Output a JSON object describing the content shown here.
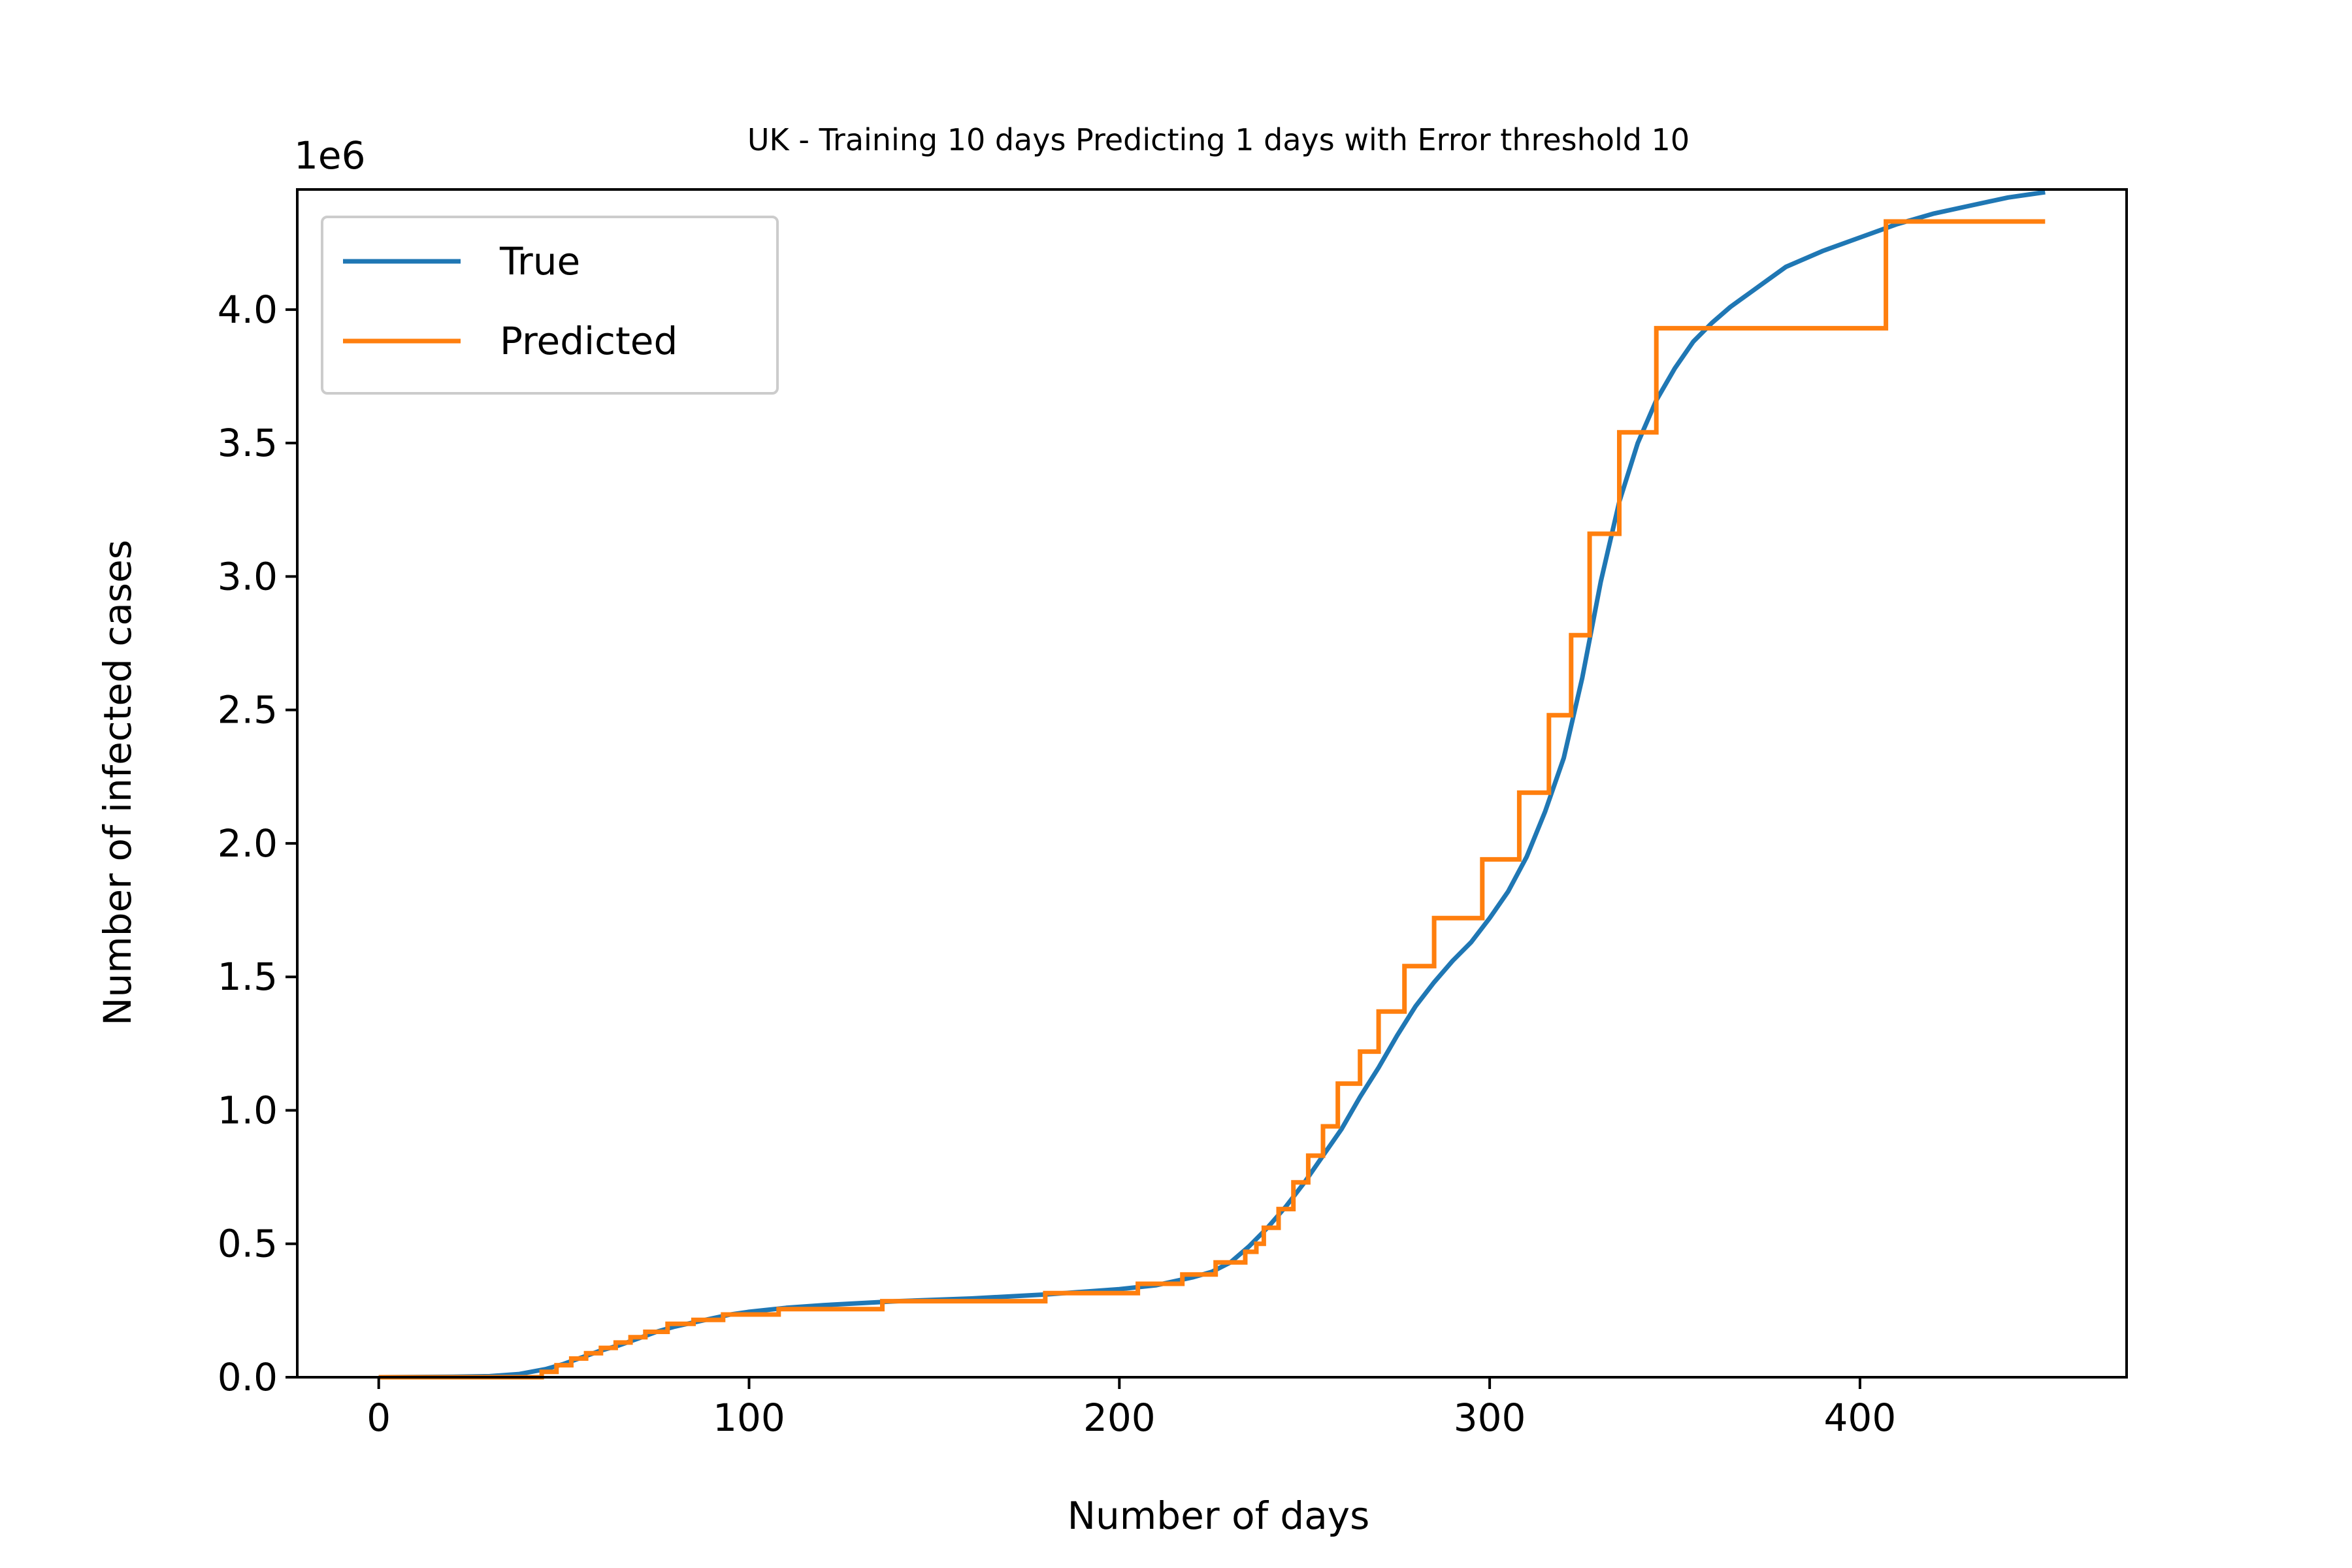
{
  "chart_data": {
    "type": "line",
    "title": "UK - Training 10 days Predicting 1 days with Error threshold 10",
    "xlabel": "Number of days",
    "ylabel": "Number of infected cases",
    "y_offset_label": "1e6",
    "xlim": [
      -22,
      472
    ],
    "ylim": [
      0,
      4.45
    ],
    "x_ticks": [
      0,
      100,
      200,
      300,
      400
    ],
    "x_tick_labels": [
      "0",
      "100",
      "200",
      "300",
      "400"
    ],
    "y_ticks": [
      0,
      0.5,
      1.0,
      1.5,
      2.0,
      2.5,
      3.0,
      3.5,
      4.0
    ],
    "y_tick_labels": [
      "0.0",
      "0.5",
      "1.0",
      "1.5",
      "2.0",
      "2.5",
      "3.0",
      "3.5",
      "4.0"
    ],
    "grid": false,
    "legend_position": "upper-left",
    "series": [
      {
        "name": "True",
        "color": "#1f77b4",
        "step": false,
        "points": [
          [
            0,
            0
          ],
          [
            20,
            0.002
          ],
          [
            30,
            0.004
          ],
          [
            38,
            0.012
          ],
          [
            45,
            0.03
          ],
          [
            50,
            0.05
          ],
          [
            55,
            0.075
          ],
          [
            60,
            0.1
          ],
          [
            65,
            0.12
          ],
          [
            70,
            0.145
          ],
          [
            75,
            0.17
          ],
          [
            80,
            0.19
          ],
          [
            85,
            0.205
          ],
          [
            90,
            0.22
          ],
          [
            95,
            0.235
          ],
          [
            100,
            0.245
          ],
          [
            110,
            0.26
          ],
          [
            120,
            0.27
          ],
          [
            140,
            0.285
          ],
          [
            160,
            0.295
          ],
          [
            180,
            0.31
          ],
          [
            200,
            0.33
          ],
          [
            210,
            0.345
          ],
          [
            220,
            0.375
          ],
          [
            225,
            0.395
          ],
          [
            230,
            0.43
          ],
          [
            235,
            0.49
          ],
          [
            240,
            0.56
          ],
          [
            245,
            0.64
          ],
          [
            250,
            0.73
          ],
          [
            255,
            0.83
          ],
          [
            260,
            0.93
          ],
          [
            265,
            1.05
          ],
          [
            270,
            1.16
          ],
          [
            275,
            1.28
          ],
          [
            280,
            1.39
          ],
          [
            285,
            1.48
          ],
          [
            290,
            1.56
          ],
          [
            295,
            1.63
          ],
          [
            300,
            1.72
          ],
          [
            305,
            1.82
          ],
          [
            310,
            1.95
          ],
          [
            315,
            2.12
          ],
          [
            320,
            2.32
          ],
          [
            325,
            2.62
          ],
          [
            330,
            2.98
          ],
          [
            335,
            3.28
          ],
          [
            340,
            3.5
          ],
          [
            345,
            3.66
          ],
          [
            350,
            3.78
          ],
          [
            355,
            3.88
          ],
          [
            360,
            3.95
          ],
          [
            365,
            4.01
          ],
          [
            370,
            4.06
          ],
          [
            375,
            4.11
          ],
          [
            380,
            4.16
          ],
          [
            390,
            4.22
          ],
          [
            400,
            4.27
          ],
          [
            410,
            4.32
          ],
          [
            420,
            4.36
          ],
          [
            430,
            4.39
          ],
          [
            440,
            4.42
          ],
          [
            450,
            4.44
          ]
        ]
      },
      {
        "name": "Predicted",
        "color": "#ff7f0e",
        "step": true,
        "points": [
          [
            0,
            0
          ],
          [
            44,
            0
          ],
          [
            44,
            0.02
          ],
          [
            48,
            0.02
          ],
          [
            48,
            0.045
          ],
          [
            52,
            0.045
          ],
          [
            52,
            0.07
          ],
          [
            56,
            0.07
          ],
          [
            56,
            0.09
          ],
          [
            60,
            0.09
          ],
          [
            60,
            0.11
          ],
          [
            64,
            0.11
          ],
          [
            64,
            0.13
          ],
          [
            68,
            0.13
          ],
          [
            68,
            0.15
          ],
          [
            72,
            0.15
          ],
          [
            72,
            0.17
          ],
          [
            78,
            0.17
          ],
          [
            78,
            0.2
          ],
          [
            85,
            0.2
          ],
          [
            85,
            0.215
          ],
          [
            93,
            0.215
          ],
          [
            93,
            0.235
          ],
          [
            108,
            0.235
          ],
          [
            108,
            0.255
          ],
          [
            136,
            0.255
          ],
          [
            136,
            0.285
          ],
          [
            180,
            0.285
          ],
          [
            180,
            0.315
          ],
          [
            205,
            0.315
          ],
          [
            205,
            0.35
          ],
          [
            217,
            0.35
          ],
          [
            217,
            0.385
          ],
          [
            226,
            0.385
          ],
          [
            226,
            0.43
          ],
          [
            234,
            0.43
          ],
          [
            234,
            0.47
          ],
          [
            237,
            0.47
          ],
          [
            237,
            0.5
          ],
          [
            239,
            0.5
          ],
          [
            239,
            0.56
          ],
          [
            243,
            0.56
          ],
          [
            243,
            0.63
          ],
          [
            247,
            0.63
          ],
          [
            247,
            0.73
          ],
          [
            251,
            0.73
          ],
          [
            251,
            0.83
          ],
          [
            255,
            0.83
          ],
          [
            255,
            0.94
          ],
          [
            259,
            0.94
          ],
          [
            259,
            1.1
          ],
          [
            265,
            1.1
          ],
          [
            265,
            1.22
          ],
          [
            270,
            1.22
          ],
          [
            270,
            1.37
          ],
          [
            277,
            1.37
          ],
          [
            277,
            1.54
          ],
          [
            285,
            1.54
          ],
          [
            285,
            1.72
          ],
          [
            298,
            1.72
          ],
          [
            298,
            1.94
          ],
          [
            308,
            1.94
          ],
          [
            308,
            2.19
          ],
          [
            316,
            2.19
          ],
          [
            316,
            2.48
          ],
          [
            322,
            2.48
          ],
          [
            322,
            2.78
          ],
          [
            327,
            2.78
          ],
          [
            327,
            3.16
          ],
          [
            335,
            3.16
          ],
          [
            335,
            3.54
          ],
          [
            345,
            3.54
          ],
          [
            345,
            3.93
          ],
          [
            360,
            3.93
          ],
          [
            360,
            3.93
          ],
          [
            407,
            3.93
          ],
          [
            407,
            4.33
          ],
          [
            450,
            4.33
          ]
        ]
      }
    ]
  }
}
